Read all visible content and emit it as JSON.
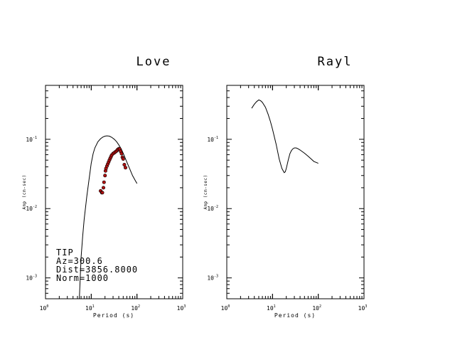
{
  "chart_data": [
    {
      "type": "line",
      "title": "Love",
      "xlabel": "Period (s)",
      "ylabel": "Amp (cm-sec)",
      "x_scale": "log",
      "y_scale": "log",
      "xlim": [
        1,
        1000
      ],
      "ylim": [
        0.0005,
        0.6
      ],
      "x_ticks": [
        {
          "base": "10",
          "exp": "0"
        },
        {
          "base": "10",
          "exp": "1"
        },
        {
          "base": "10",
          "exp": "2"
        },
        {
          "base": "10",
          "exp": "3"
        }
      ],
      "y_ticks": [
        {
          "value": 0.001,
          "base": "10",
          "exp": "-3"
        },
        {
          "value": 0.01,
          "base": "10",
          "exp": "-2"
        },
        {
          "value": 0.1,
          "base": "10",
          "exp": "-1"
        }
      ],
      "series": [
        {
          "kind": "line",
          "x": [
            5.5,
            6,
            6.5,
            7,
            8,
            9,
            10,
            11,
            12,
            14,
            16,
            18,
            20,
            22,
            25,
            28,
            32,
            36,
            40,
            45,
            50,
            60,
            70,
            80,
            90,
            100
          ],
          "y": [
            0.0005,
            0.002,
            0.004,
            0.007,
            0.015,
            0.027,
            0.045,
            0.062,
            0.075,
            0.092,
            0.102,
            0.108,
            0.111,
            0.112,
            0.111,
            0.107,
            0.1,
            0.092,
            0.083,
            0.073,
            0.063,
            0.047,
            0.037,
            0.03,
            0.026,
            0.023
          ]
        },
        {
          "kind": "points",
          "color": "#b01010",
          "x": [
            16,
            17,
            17.5,
            18.5,
            19,
            20,
            20.5,
            21,
            22,
            23,
            24,
            25,
            26,
            27,
            28,
            30,
            32,
            34,
            36,
            38,
            40,
            42,
            44,
            46,
            48,
            50,
            53,
            56
          ],
          "y": [
            0.018,
            0.017,
            0.017,
            0.02,
            0.024,
            0.03,
            0.035,
            0.038,
            0.041,
            0.044,
            0.047,
            0.05,
            0.053,
            0.056,
            0.059,
            0.062,
            0.064,
            0.066,
            0.068,
            0.071,
            0.073,
            0.072,
            0.067,
            0.062,
            0.055,
            0.052,
            0.043,
            0.039
          ]
        }
      ],
      "annotation": [
        "TIP",
        "Az=300.6",
        "Dist=3856.8000",
        "Norm=1000"
      ]
    },
    {
      "type": "line",
      "title": "Rayl",
      "xlabel": "Period (s)",
      "ylabel": "Amp (cm-sec)",
      "x_scale": "log",
      "y_scale": "log",
      "xlim": [
        1,
        1000
      ],
      "ylim": [
        0.0005,
        0.6
      ],
      "x_ticks": [
        {
          "base": "10",
          "exp": "0"
        },
        {
          "base": "10",
          "exp": "1"
        },
        {
          "base": "10",
          "exp": "2"
        },
        {
          "base": "10",
          "exp": "3"
        }
      ],
      "y_ticks": [
        {
          "value": 0.001,
          "base": "10",
          "exp": "-3"
        },
        {
          "value": 0.01,
          "base": "10",
          "exp": "-2"
        },
        {
          "value": 0.1,
          "base": "10",
          "exp": "-1"
        }
      ],
      "series": [
        {
          "kind": "line",
          "x": [
            3.5,
            4,
            4.5,
            5,
            5.5,
            6,
            7,
            8,
            9,
            10,
            12,
            14,
            16,
            18,
            19,
            20,
            22,
            24,
            26,
            28,
            30,
            33,
            36,
            40,
            50,
            60,
            70,
            80,
            100
          ],
          "y": [
            0.28,
            0.32,
            0.35,
            0.37,
            0.36,
            0.34,
            0.29,
            0.23,
            0.18,
            0.14,
            0.085,
            0.052,
            0.038,
            0.033,
            0.034,
            0.038,
            0.05,
            0.062,
            0.069,
            0.073,
            0.075,
            0.075,
            0.073,
            0.07,
            0.063,
            0.057,
            0.052,
            0.048,
            0.045
          ]
        }
      ]
    }
  ]
}
